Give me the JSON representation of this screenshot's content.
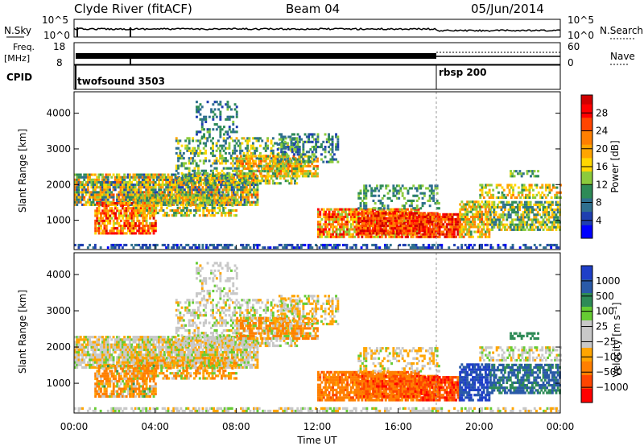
{
  "header": {
    "station": "Clyde River (fitACF)",
    "beam": "Beam 04",
    "date": "05/Jun/2014"
  },
  "noise_panel": {
    "left_label": "N.Sky",
    "left_ticks": [
      "10^5",
      "10^0"
    ],
    "right_ticks": [
      "10^5",
      "10^0"
    ],
    "right_label": "N.Search"
  },
  "freq_panel": {
    "left_label_top": "Freq.",
    "left_label_unit": "[MHz]",
    "left_ticks": [
      "18",
      "8"
    ],
    "right_ticks": [
      "60",
      "0"
    ],
    "right_label": "Nave"
  },
  "cpid_panel": {
    "label": "CPID",
    "programs": [
      {
        "name": "twofsound 3503",
        "start_hour": 0
      },
      {
        "name": "rbsp 200",
        "start_hour": 18
      }
    ]
  },
  "chart_data": [
    {
      "type": "heatmap",
      "panel": "power",
      "ylabel": "Slant Range [km]",
      "y_ticks": [
        "1000",
        "2000",
        "3000",
        "4000"
      ],
      "y_tick_values": [
        1000,
        2000,
        3000,
        4000
      ],
      "ylim": [
        180,
        4600
      ],
      "xlim_hours": [
        0,
        24
      ],
      "colorbar": {
        "label": "Power [dB]",
        "tick_labels": [
          "4",
          "8",
          "12",
          "16",
          "20",
          "24",
          "28"
        ],
        "tick_values": [
          4,
          8,
          12,
          16,
          20,
          24,
          28
        ],
        "range": [
          0,
          32
        ],
        "colors": [
          "#0000ff",
          "#1f3fb0",
          "#2f6f8f",
          "#2e8b57",
          "#8ccb3c",
          "#ffd700",
          "#ffa500",
          "#ff7f00",
          "#ff4500",
          "#ff0000",
          "#d00000"
        ]
      }
    },
    {
      "type": "heatmap",
      "panel": "velocity",
      "ylabel": "Slant Range [km]",
      "y_ticks": [
        "1000",
        "2000",
        "3000",
        "4000"
      ],
      "y_tick_values": [
        1000,
        2000,
        3000,
        4000
      ],
      "ylim": [
        180,
        4600
      ],
      "xlim_hours": [
        0,
        24
      ],
      "x_ticks": [
        "00:00",
        "04:00",
        "08:00",
        "12:00",
        "16:00",
        "20:00",
        "00:00"
      ],
      "x_tick_hours": [
        0,
        4,
        8,
        12,
        16,
        20,
        24
      ],
      "xlabel": "Time UT",
      "colorbar": {
        "label": "Velocity [m s⁻¹]",
        "tick_labels": [
          "1000",
          "500",
          "100",
          "25",
          "−25",
          "−100",
          "−500",
          "−1000"
        ],
        "tick_values": [
          1000,
          500,
          100,
          25,
          -25,
          -100,
          -500,
          -1000
        ],
        "colors": [
          "#1f3fc8",
          "#2a5aa8",
          "#2e8b57",
          "#66cc33",
          "#c8c8c8",
          "#c8c8c8",
          "#ffa500",
          "#ff7f00",
          "#ff4500",
          "#ff0000"
        ]
      }
    }
  ]
}
